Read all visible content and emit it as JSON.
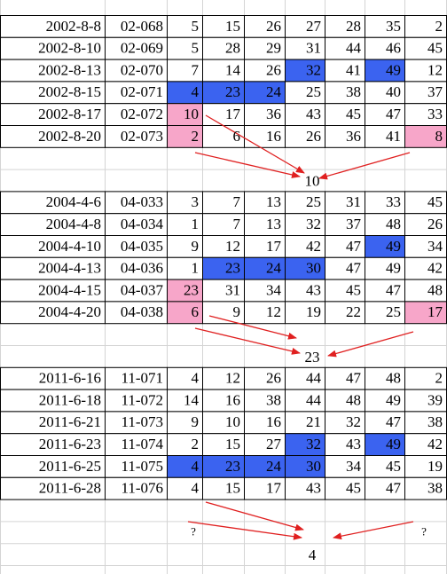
{
  "blocks": [
    {
      "rows": [
        [
          "2002-8-8",
          "02-068",
          5,
          15,
          26,
          27,
          28,
          35,
          2
        ],
        [
          "2002-8-10",
          "02-069",
          5,
          28,
          29,
          31,
          44,
          46,
          45
        ],
        [
          "2002-8-13",
          "02-070",
          7,
          14,
          26,
          32,
          41,
          49,
          12
        ],
        [
          "2002-8-15",
          "02-071",
          4,
          23,
          24,
          25,
          38,
          40,
          37
        ],
        [
          "2002-8-17",
          "02-072",
          10,
          17,
          36,
          43,
          45,
          47,
          33
        ],
        [
          "2002-8-20",
          "02-073",
          2,
          6,
          16,
          26,
          36,
          41,
          8
        ]
      ],
      "blue": [
        [
          2,
          5
        ],
        [
          2,
          7
        ],
        [
          3,
          2
        ],
        [
          3,
          3
        ],
        [
          3,
          4
        ]
      ],
      "pink": [
        [
          4,
          2
        ],
        [
          5,
          2
        ],
        [
          5,
          8
        ]
      ],
      "result": 10
    },
    {
      "rows": [
        [
          "2004-4-6",
          "04-033",
          3,
          7,
          13,
          25,
          31,
          33,
          45
        ],
        [
          "2004-4-8",
          "04-034",
          1,
          7,
          13,
          32,
          37,
          48,
          26
        ],
        [
          "2004-4-10",
          "04-035",
          9,
          12,
          17,
          42,
          47,
          49,
          34
        ],
        [
          "2004-4-13",
          "04-036",
          1,
          23,
          24,
          30,
          47,
          49,
          42
        ],
        [
          "2004-4-15",
          "04-037",
          23,
          31,
          34,
          43,
          45,
          47,
          48
        ],
        [
          "2004-4-20",
          "04-038",
          6,
          9,
          12,
          19,
          22,
          25,
          17
        ]
      ],
      "blue": [
        [
          2,
          7
        ],
        [
          3,
          3
        ],
        [
          3,
          4
        ],
        [
          3,
          5
        ]
      ],
      "pink": [
        [
          4,
          2
        ],
        [
          5,
          2
        ],
        [
          5,
          8
        ]
      ],
      "result": 23
    },
    {
      "rows": [
        [
          "2011-6-16",
          "11-071",
          4,
          12,
          26,
          44,
          47,
          48,
          2
        ],
        [
          "2011-6-18",
          "11-072",
          14,
          16,
          38,
          44,
          48,
          49,
          39
        ],
        [
          "2011-6-21",
          "11-073",
          9,
          10,
          16,
          21,
          32,
          47,
          38
        ],
        [
          "2011-6-23",
          "11-074",
          2,
          15,
          27,
          32,
          43,
          49,
          42
        ],
        [
          "2011-6-25",
          "11-075",
          4,
          23,
          24,
          30,
          34,
          45,
          19
        ],
        [
          "2011-6-28",
          "11-076",
          4,
          15,
          17,
          43,
          45,
          47,
          38
        ]
      ],
      "blue": [
        [
          3,
          5
        ],
        [
          3,
          7
        ],
        [
          4,
          2
        ],
        [
          4,
          3
        ],
        [
          4,
          4
        ],
        [
          4,
          5
        ]
      ],
      "pink": [],
      "unknowns": [
        "?",
        "?"
      ],
      "result": 4
    }
  ],
  "colors": {
    "blue": "#3b63f0",
    "pink": "#f7a6c9"
  }
}
